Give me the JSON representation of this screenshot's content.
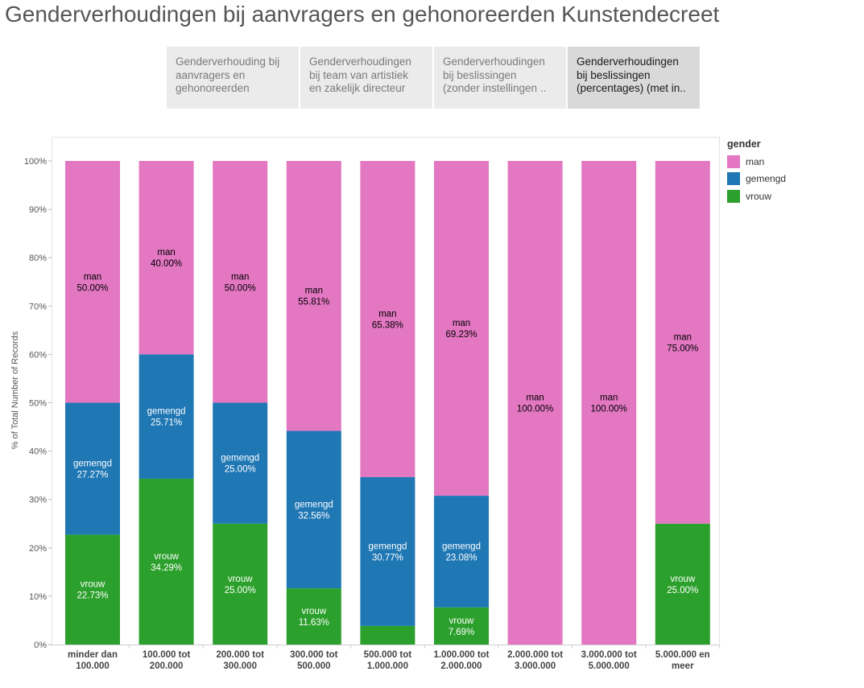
{
  "page": {
    "title": "Genderverhoudingen bij aanvragers en gehonoreerden Kunstendecreet"
  },
  "tabs": [
    {
      "label": "Genderverhouding bij\naanvragers en\ngehonoreerden",
      "active": false
    },
    {
      "label": "Genderverhoudingen\nbij team van artistiek\nen zakelijk directeur",
      "active": false
    },
    {
      "label": "Genderverhoudingen\nbij beslissingen\n(zonder instellingen ..",
      "active": false
    },
    {
      "label": "Genderverhoudingen\nbij beslissingen\n(percentages) (met in..",
      "active": true
    }
  ],
  "legend": {
    "title": "gender",
    "items": [
      {
        "label": "man",
        "color": "#e377c2"
      },
      {
        "label": "gemengd",
        "color": "#1f77b4"
      },
      {
        "label": "vrouw",
        "color": "#2ca02c"
      }
    ]
  },
  "chart_data": {
    "type": "bar",
    "stacked": true,
    "ylabel": "% of Total Number of Records",
    "ylim": [
      0,
      100
    ],
    "yticks": [
      "0%",
      "10%",
      "20%",
      "30%",
      "40%",
      "50%",
      "60%",
      "70%",
      "80%",
      "90%",
      "100%"
    ],
    "categories": [
      "minder dan\n100.000",
      "100.000 tot\n200.000",
      "200.000 tot\n300.000",
      "300.000 tot\n500.000",
      "500.000 tot\n1.000.000",
      "1.000.000 tot\n2.000.000",
      "2.000.000 tot\n3.000.000",
      "3.000.000 tot\n5.000.000",
      "5.000.000 en\nmeer"
    ],
    "series": [
      {
        "name": "vrouw",
        "color": "#2ca02c",
        "text_color": "#ffffff",
        "values": [
          22.73,
          34.29,
          25.0,
          11.63,
          3.85,
          7.69,
          0,
          0,
          25.0
        ],
        "labels": [
          "22.73%",
          "34.29%",
          "25.00%",
          "11.63%",
          null,
          "7.69%",
          null,
          null,
          "25.00%"
        ]
      },
      {
        "name": "gemengd",
        "color": "#1f77b4",
        "text_color": "#ffffff",
        "values": [
          27.27,
          25.71,
          25.0,
          32.56,
          30.77,
          23.08,
          0,
          0,
          0
        ],
        "labels": [
          "27.27%",
          "25.71%",
          "25.00%",
          "32.56%",
          "30.77%",
          "23.08%",
          null,
          null,
          null
        ]
      },
      {
        "name": "man",
        "color": "#e377c2",
        "text_color": "#000000",
        "values": [
          50.0,
          40.0,
          50.0,
          55.81,
          65.38,
          69.23,
          100.0,
          100.0,
          75.0
        ],
        "labels": [
          "50.00%",
          "40.00%",
          "50.00%",
          "55.81%",
          "65.38%",
          "69.23%",
          "100.00%",
          "100.00%",
          "75.00%"
        ]
      }
    ],
    "grid": false,
    "legend_position": "right"
  }
}
